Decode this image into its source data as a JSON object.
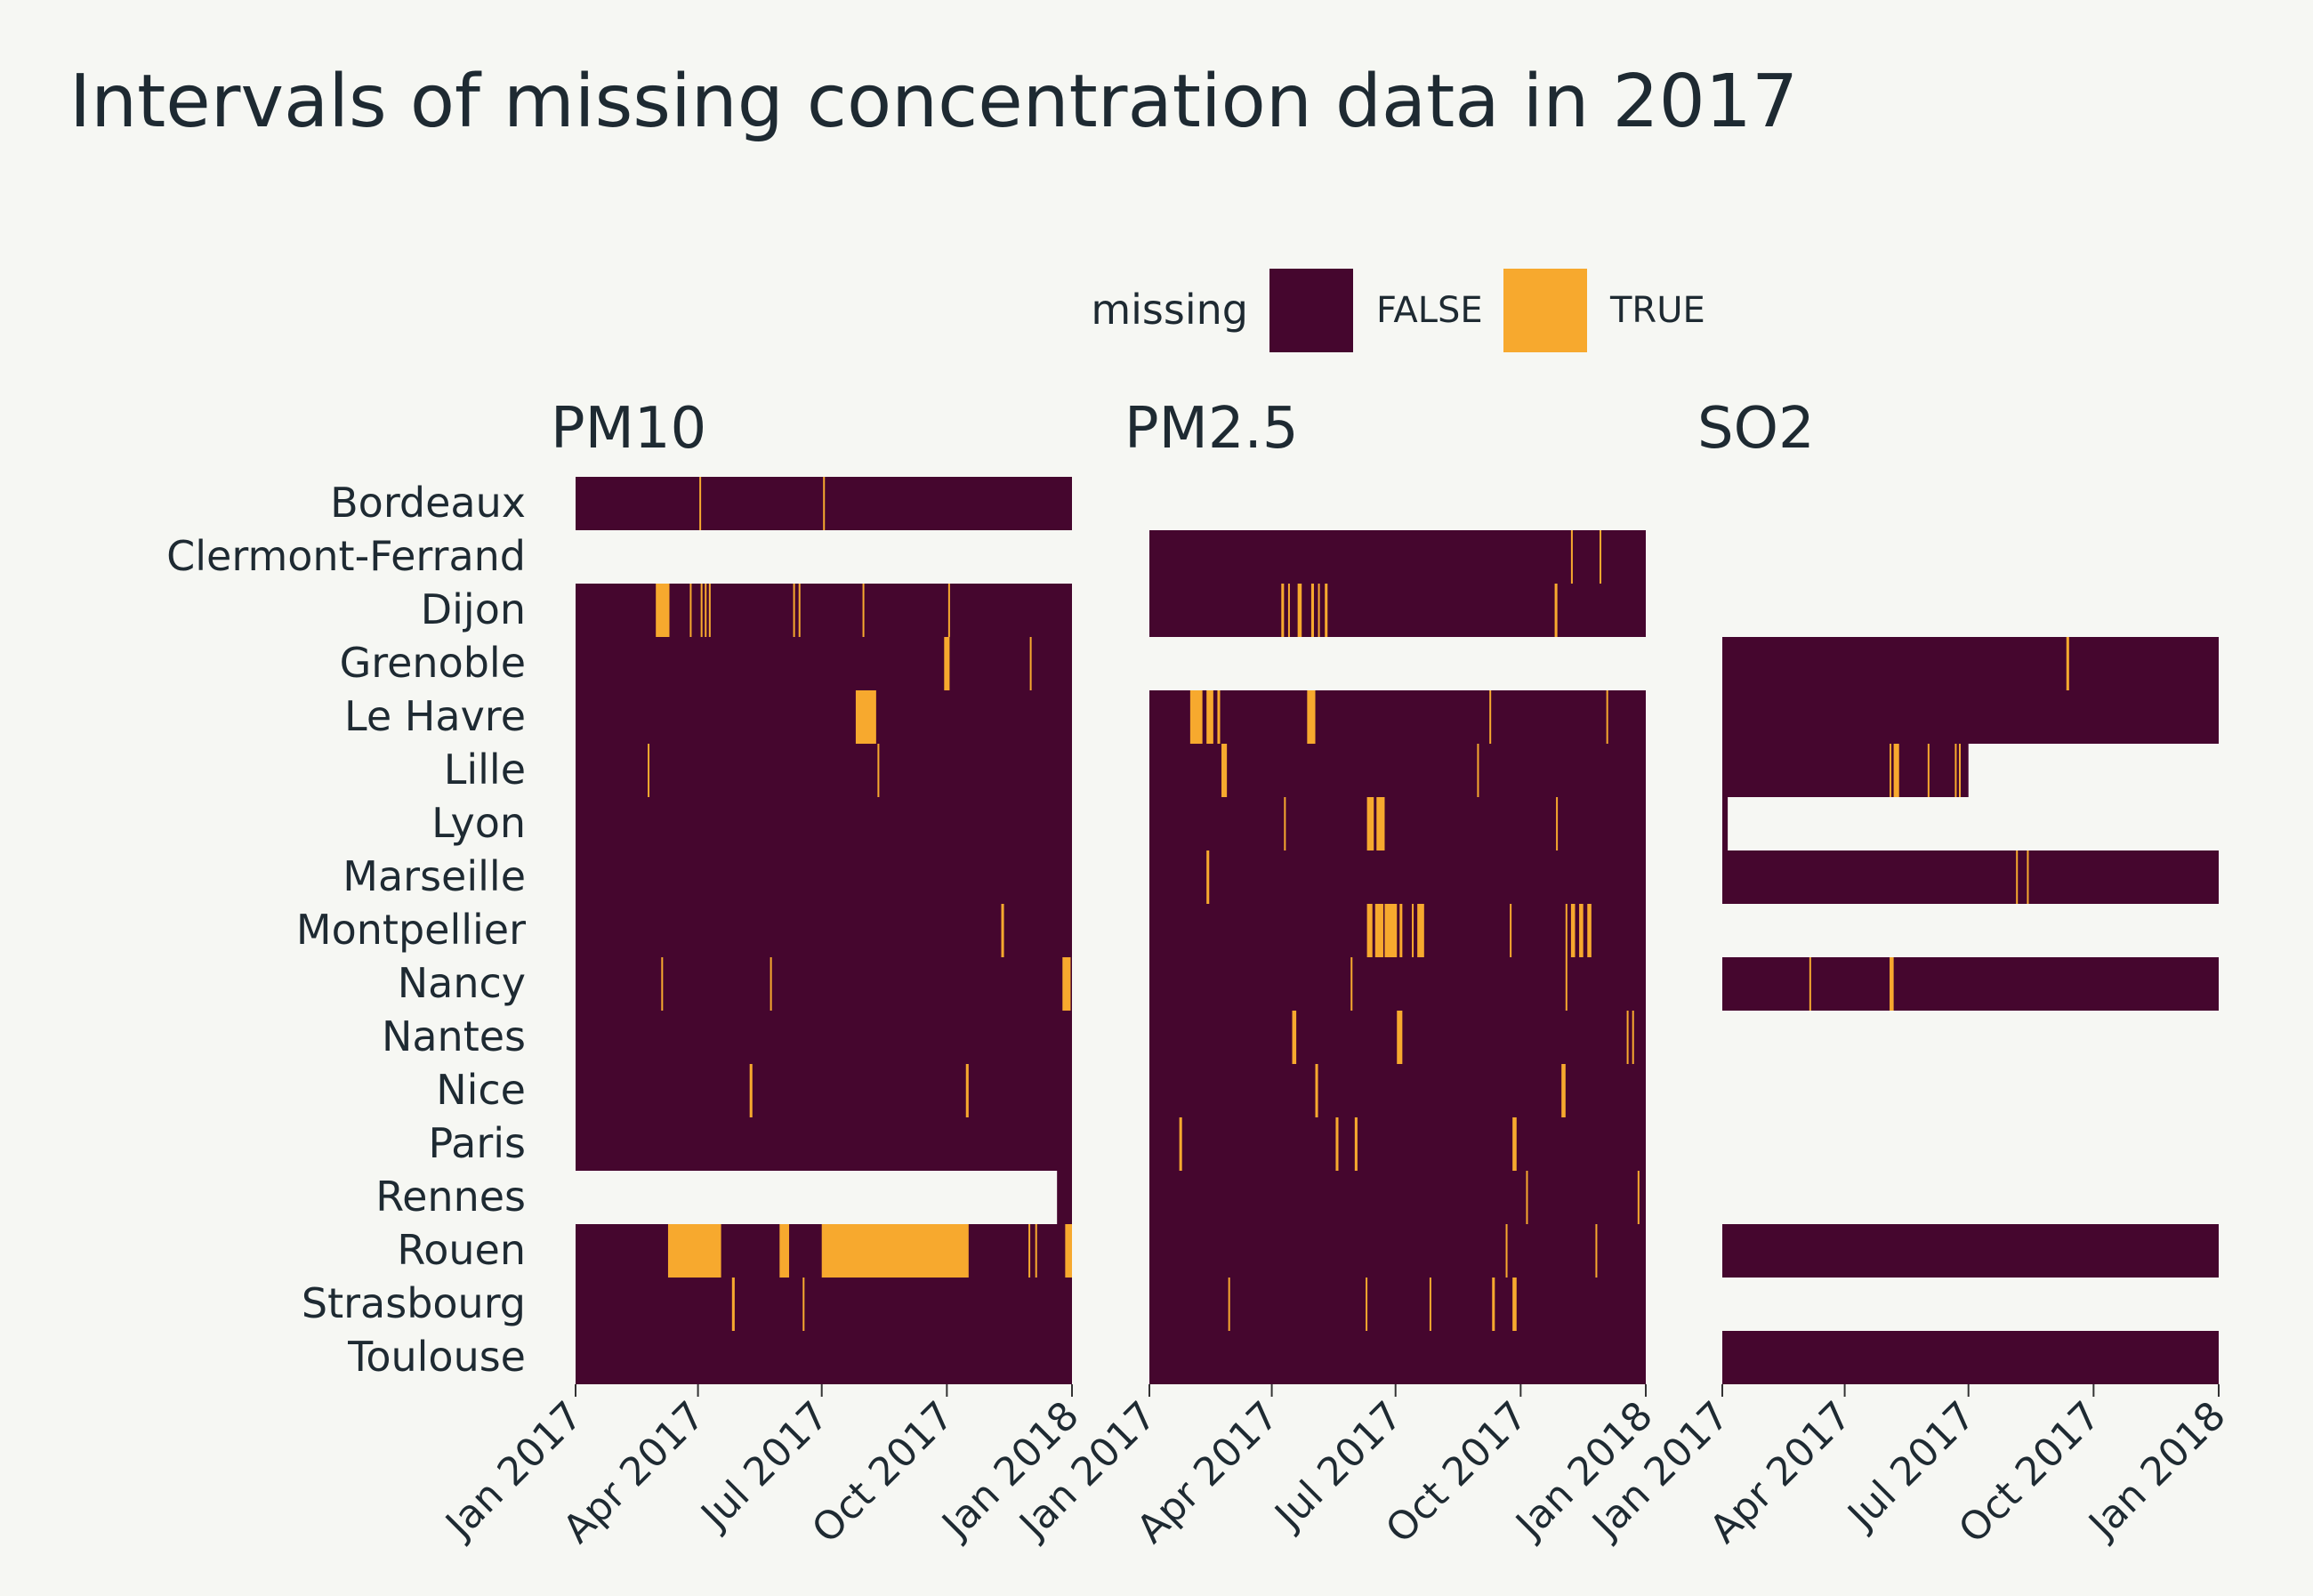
{
  "colors": {
    "background": "#f6f7f3",
    "false_color": "#45062e",
    "true_color": "#f7a92e",
    "text": "#1e2a32"
  },
  "chart_data": {
    "type": "heatmap",
    "title": "Intervals of missing concentration data in 2017",
    "legend": {
      "title": "missing",
      "placement": "top-right",
      "entries": [
        {
          "label": "FALSE",
          "color": "#45062e"
        },
        {
          "label": "TRUE",
          "color": "#f7a92e"
        }
      ]
    },
    "cities": [
      "Bordeaux",
      "Clermont-Ferrand",
      "Dijon",
      "Grenoble",
      "Le Havre",
      "Lille",
      "Lyon",
      "Marseille",
      "Montpellier",
      "Nancy",
      "Nantes",
      "Nice",
      "Paris",
      "Rennes",
      "Rouen",
      "Strasbourg",
      "Toulouse"
    ],
    "x_domain": [
      "2017-01-01",
      "2018-01-01"
    ],
    "x_ticks": [
      {
        "date": "2017-01-01",
        "label": "Jan 2017"
      },
      {
        "date": "2017-04-01",
        "label": "Apr 2017"
      },
      {
        "date": "2017-07-01",
        "label": "Jul 2017"
      },
      {
        "date": "2017-10-01",
        "label": "Oct 2017"
      },
      {
        "date": "2018-01-01",
        "label": "Jan 2018"
      }
    ],
    "panels": [
      {
        "name": "PM10",
        "rows": [
          {
            "city": "Bordeaux",
            "start": "2017-01-01",
            "end": "2018-01-01",
            "missing": [
              [
                "2017-04-02",
                "2017-04-03"
              ],
              [
                "2017-07-02",
                "2017-07-03"
              ]
            ]
          },
          {
            "city": "Dijon",
            "start": "2017-01-01",
            "end": "2018-01-01",
            "missing": [
              [
                "2017-03-01",
                "2017-03-11"
              ],
              [
                "2017-03-26",
                "2017-03-27"
              ],
              [
                "2017-04-03",
                "2017-04-04"
              ],
              [
                "2017-04-06",
                "2017-04-07"
              ],
              [
                "2017-04-09",
                "2017-04-10"
              ],
              [
                "2017-06-10",
                "2017-06-11"
              ],
              [
                "2017-06-14",
                "2017-06-15"
              ],
              [
                "2017-07-31",
                "2017-08-01"
              ],
              [
                "2017-10-02",
                "2017-10-03"
              ]
            ]
          },
          {
            "city": "Grenoble",
            "start": "2017-01-01",
            "end": "2018-01-01",
            "missing": [
              [
                "2017-09-29",
                "2017-10-03"
              ],
              [
                "2017-12-01",
                "2017-12-02"
              ]
            ]
          },
          {
            "city": "Le Havre",
            "start": "2017-01-01",
            "end": "2018-01-01",
            "missing": [
              [
                "2017-07-26",
                "2017-08-10"
              ]
            ]
          },
          {
            "city": "Lille",
            "start": "2017-01-01",
            "end": "2018-01-01",
            "missing": [
              [
                "2017-02-23",
                "2017-02-24"
              ],
              [
                "2017-08-11",
                "2017-08-12"
              ]
            ]
          },
          {
            "city": "Lyon",
            "start": "2017-01-01",
            "end": "2018-01-01",
            "missing": []
          },
          {
            "city": "Marseille",
            "start": "2017-01-01",
            "end": "2018-01-01",
            "missing": []
          },
          {
            "city": "Montpellier",
            "start": "2017-01-01",
            "end": "2018-01-01",
            "missing": [
              [
                "2017-11-10",
                "2017-11-12"
              ]
            ]
          },
          {
            "city": "Nancy",
            "start": "2017-01-01",
            "end": "2018-01-01",
            "missing": [
              [
                "2017-03-05",
                "2017-03-06"
              ],
              [
                "2017-05-24",
                "2017-05-25"
              ],
              [
                "2017-12-25",
                "2017-12-31"
              ]
            ]
          },
          {
            "city": "Nantes",
            "start": "2017-01-01",
            "end": "2018-01-01",
            "missing": []
          },
          {
            "city": "Nice",
            "start": "2017-01-01",
            "end": "2018-01-01",
            "missing": [
              [
                "2017-05-09",
                "2017-05-11"
              ],
              [
                "2017-10-15",
                "2017-10-17"
              ]
            ]
          },
          {
            "city": "Paris",
            "start": "2017-01-01",
            "end": "2018-01-01",
            "missing": []
          },
          {
            "city": "Rennes",
            "start": "2017-12-21",
            "end": "2018-01-01",
            "missing": []
          },
          {
            "city": "Rouen",
            "start": "2017-01-01",
            "end": "2018-01-01",
            "missing": [
              [
                "2017-03-10",
                "2017-04-18"
              ],
              [
                "2017-05-31",
                "2017-06-07"
              ],
              [
                "2017-07-01",
                "2017-10-17"
              ],
              [
                "2017-11-30",
                "2017-12-01"
              ],
              [
                "2017-12-05",
                "2017-12-06"
              ],
              [
                "2017-12-27",
                "2018-01-01"
              ]
            ]
          },
          {
            "city": "Strasbourg",
            "start": "2017-01-01",
            "end": "2018-01-01",
            "missing": [
              [
                "2017-04-26",
                "2017-04-28"
              ],
              [
                "2017-06-17",
                "2017-06-18"
              ]
            ]
          },
          {
            "city": "Toulouse",
            "start": "2017-01-01",
            "end": "2018-01-01",
            "missing": []
          }
        ]
      },
      {
        "name": "PM2.5",
        "rows": [
          {
            "city": "Clermont-Ferrand",
            "start": "2017-01-01",
            "end": "2018-01-01",
            "missing": [
              [
                "2017-11-07",
                "2017-11-08"
              ],
              [
                "2017-11-28",
                "2017-11-29"
              ]
            ]
          },
          {
            "city": "Dijon",
            "start": "2017-01-01",
            "end": "2018-01-01",
            "missing": [
              [
                "2017-04-08",
                "2017-04-10"
              ],
              [
                "2017-04-13",
                "2017-04-14"
              ],
              [
                "2017-04-20",
                "2017-04-23"
              ],
              [
                "2017-04-30",
                "2017-05-02"
              ],
              [
                "2017-05-05",
                "2017-05-06"
              ],
              [
                "2017-05-10",
                "2017-05-12"
              ],
              [
                "2017-10-26",
                "2017-10-28"
              ]
            ]
          },
          {
            "city": "Le Havre",
            "start": "2017-01-01",
            "end": "2018-01-01",
            "missing": [
              [
                "2017-01-31",
                "2017-02-09"
              ],
              [
                "2017-02-12",
                "2017-02-17"
              ],
              [
                "2017-02-20",
                "2017-02-22"
              ],
              [
                "2017-04-27",
                "2017-05-03"
              ],
              [
                "2017-09-08",
                "2017-09-09"
              ],
              [
                "2017-12-03",
                "2017-12-04"
              ]
            ]
          },
          {
            "city": "Lille",
            "start": "2017-01-01",
            "end": "2018-01-01",
            "missing": [
              [
                "2017-02-23",
                "2017-02-27"
              ],
              [
                "2017-08-30",
                "2017-08-31"
              ]
            ]
          },
          {
            "city": "Lyon",
            "start": "2017-01-01",
            "end": "2018-01-01",
            "missing": [
              [
                "2017-04-10",
                "2017-04-11"
              ],
              [
                "2017-06-10",
                "2017-06-15"
              ],
              [
                "2017-06-17",
                "2017-06-23"
              ],
              [
                "2017-10-27",
                "2017-10-28"
              ]
            ]
          },
          {
            "city": "Marseille",
            "start": "2017-01-01",
            "end": "2018-01-01",
            "missing": [
              [
                "2017-02-12",
                "2017-02-14"
              ]
            ]
          },
          {
            "city": "Montpellier",
            "start": "2017-01-01",
            "end": "2018-01-01",
            "missing": [
              [
                "2017-06-10",
                "2017-06-14"
              ],
              [
                "2017-06-16",
                "2017-06-22"
              ],
              [
                "2017-06-23",
                "2017-07-02"
              ],
              [
                "2017-07-04",
                "2017-07-06"
              ],
              [
                "2017-07-13",
                "2017-07-14"
              ],
              [
                "2017-07-17",
                "2017-07-22"
              ],
              [
                "2017-09-23",
                "2017-09-24"
              ],
              [
                "2017-11-03",
                "2017-11-04"
              ],
              [
                "2017-11-07",
                "2017-11-10"
              ],
              [
                "2017-11-13",
                "2017-11-16"
              ],
              [
                "2017-11-19",
                "2017-11-22"
              ]
            ]
          },
          {
            "city": "Nancy",
            "start": "2017-01-01",
            "end": "2018-01-01",
            "missing": [
              [
                "2017-05-29",
                "2017-05-30"
              ],
              [
                "2017-11-03",
                "2017-11-04"
              ]
            ]
          },
          {
            "city": "Nantes",
            "start": "2017-01-01",
            "end": "2018-01-01",
            "missing": [
              [
                "2017-04-16",
                "2017-04-19"
              ],
              [
                "2017-07-02",
                "2017-07-06"
              ],
              [
                "2017-12-18",
                "2017-12-19"
              ],
              [
                "2017-12-22",
                "2017-12-23"
              ]
            ]
          },
          {
            "city": "Nice",
            "start": "2017-01-01",
            "end": "2018-01-01",
            "missing": [
              [
                "2017-05-03",
                "2017-05-05"
              ],
              [
                "2017-10-31",
                "2017-11-03"
              ]
            ]
          },
          {
            "city": "Paris",
            "start": "2017-01-01",
            "end": "2018-01-01",
            "missing": [
              [
                "2017-01-23",
                "2017-01-25"
              ],
              [
                "2017-05-18",
                "2017-05-20"
              ],
              [
                "2017-06-01",
                "2017-06-03"
              ],
              [
                "2017-09-25",
                "2017-09-28"
              ]
            ]
          },
          {
            "city": "Rennes",
            "start": "2017-01-01",
            "end": "2018-01-01",
            "missing": [
              [
                "2017-10-05",
                "2017-10-06"
              ],
              [
                "2017-12-26",
                "2017-12-27"
              ]
            ]
          },
          {
            "city": "Rouen",
            "start": "2017-01-01",
            "end": "2018-01-01",
            "missing": [
              [
                "2017-09-20",
                "2017-09-21"
              ],
              [
                "2017-11-25",
                "2017-11-26"
              ]
            ]
          },
          {
            "city": "Strasbourg",
            "start": "2017-01-01",
            "end": "2018-01-01",
            "missing": [
              [
                "2017-02-28",
                "2017-03-01"
              ],
              [
                "2017-06-09",
                "2017-06-10"
              ],
              [
                "2017-07-26",
                "2017-07-27"
              ],
              [
                "2017-09-10",
                "2017-09-12"
              ],
              [
                "2017-09-25",
                "2017-09-28"
              ]
            ]
          },
          {
            "city": "Toulouse",
            "start": "2017-01-01",
            "end": "2018-01-01",
            "missing": []
          }
        ]
      },
      {
        "name": "SO2",
        "rows": [
          {
            "city": "Grenoble",
            "start": "2017-01-01",
            "end": "2018-01-01",
            "missing": [
              [
                "2017-09-11",
                "2017-09-13"
              ]
            ]
          },
          {
            "city": "Le Havre",
            "start": "2017-01-01",
            "end": "2018-01-01",
            "missing": []
          },
          {
            "city": "Lille",
            "start": "2017-01-01",
            "end": "2017-07-01",
            "missing": [
              [
                "2017-05-04",
                "2017-05-05"
              ],
              [
                "2017-05-07",
                "2017-05-11"
              ],
              [
                "2017-06-01",
                "2017-06-02"
              ],
              [
                "2017-06-21",
                "2017-06-22"
              ],
              [
                "2017-06-24",
                "2017-06-25"
              ]
            ]
          },
          {
            "city": "Lyon",
            "start": "2017-01-01",
            "end": "2017-01-05",
            "missing": []
          },
          {
            "city": "Marseille",
            "start": "2017-01-01",
            "end": "2018-01-01",
            "missing": [
              [
                "2017-08-05",
                "2017-08-06"
              ],
              [
                "2017-08-13",
                "2017-08-14"
              ]
            ]
          },
          {
            "city": "Nancy",
            "start": "2017-01-01",
            "end": "2018-01-01",
            "missing": [
              [
                "2017-03-06",
                "2017-03-07"
              ],
              [
                "2017-05-04",
                "2017-05-07"
              ]
            ]
          },
          {
            "city": "Rouen",
            "start": "2017-01-01",
            "end": "2018-01-01",
            "missing": []
          },
          {
            "city": "Toulouse",
            "start": "2017-01-01",
            "end": "2018-01-01",
            "missing": []
          }
        ]
      }
    ]
  }
}
